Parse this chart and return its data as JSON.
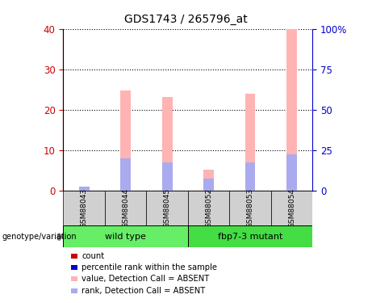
{
  "title": "GDS1743 / 265796_at",
  "samples": [
    "GSM88043",
    "GSM88044",
    "GSM88045",
    "GSM88052",
    "GSM88053",
    "GSM88054"
  ],
  "pink_values": [
    0.5,
    62.0,
    58.0,
    13.0,
    60.0,
    100.0
  ],
  "blue_values": [
    2.5,
    20.0,
    17.5,
    7.5,
    17.5,
    22.5
  ],
  "red_count_left": [
    0.3,
    0.0,
    0.0,
    0.5,
    0.0,
    0.0
  ],
  "blue_count_left": [
    1.0,
    0.0,
    0.0,
    1.2,
    0.0,
    0.0
  ],
  "ylim_left": [
    0,
    40
  ],
  "ylim_right": [
    0,
    100
  ],
  "yticks_left": [
    0,
    10,
    20,
    30,
    40
  ],
  "yticks_right": [
    0,
    25,
    50,
    75,
    100
  ],
  "ytick_labels_left": [
    "0",
    "10",
    "20",
    "30",
    "40"
  ],
  "ytick_labels_right": [
    "0",
    "25",
    "50",
    "75",
    "100%"
  ],
  "pink_color": "#ffb3b3",
  "blue_color": "#aaaaee",
  "red_color": "#cc0000",
  "blue_count_color": "#0000cc",
  "left_tick_color": "#cc0000",
  "right_tick_color": "#0000cc",
  "group_wt_color": "#66ee66",
  "group_mt_color": "#44dd44",
  "gray_color": "#d0d0d0",
  "legend_items": [
    {
      "label": "count",
      "color": "#cc0000"
    },
    {
      "label": "percentile rank within the sample",
      "color": "#0000cc"
    },
    {
      "label": "value, Detection Call = ABSENT",
      "color": "#ffb3b3"
    },
    {
      "label": "rank, Detection Call = ABSENT",
      "color": "#aaaaee"
    }
  ]
}
